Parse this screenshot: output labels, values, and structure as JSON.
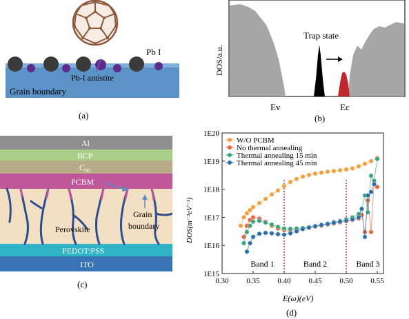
{
  "panel_a": {
    "label_pbi": "Pb I",
    "label_antisite": "Pb-I antistite",
    "label_grain_boundary": "Grain boundary",
    "caption": "(a)",
    "colors": {
      "substrate": "#5b93c7",
      "fullerene": "#8a5a3a",
      "pb_atom": "#3a3a3a",
      "i_atom": "#5b2c8c"
    },
    "icon": "fullerene-molecule"
  },
  "panel_b": {
    "ylabel": "DOS/a.u.",
    "label_trap": "Trap state",
    "label_ev": "Ev",
    "label_ec": "Ec",
    "caption": "(b)",
    "colors": {
      "bands": "#a6a6a6",
      "trap_peak": "#000000",
      "shifted_peak": "#c0282d"
    }
  },
  "panel_c": {
    "layers": [
      "Al",
      "BCP",
      "C60",
      "PCBM",
      "Perovskite",
      "PEDOT:PSS",
      "ITO"
    ],
    "label_al": "Al",
    "label_bcp": "BCP",
    "label_c60_main": "C",
    "label_c60_sub": "60",
    "label_pcbm": "PCBM",
    "label_perovskite": "Perovskite",
    "label_grain_line1": "Grain",
    "label_grain_line2": "boundary",
    "label_pedot": "PEDOT:PSS",
    "label_ito": "ITO",
    "caption": "(c)",
    "colors": {
      "al": "#8e8e8e",
      "bcp": "#a8cf87",
      "c60": "#b9ab88",
      "pcbm": "#c0579a",
      "perovskite": "#f3dfc3",
      "pedot": "#2fb3c5",
      "ito": "#3a74b6",
      "grain": "#2d4e8c"
    }
  },
  "panel_d": {
    "caption": "(d)",
    "xlabel": "E(ω)(eV)",
    "ylabel": "DOS(m⁻³eV⁻¹)",
    "band_labels": [
      "Band 1",
      "Band 2",
      "Band 3"
    ],
    "xticks": [
      "0.30",
      "0.35",
      "0.40",
      "0.45",
      "0.50",
      "0.55"
    ],
    "yticks": [
      "1E15",
      "1E16",
      "1E17",
      "1E18",
      "1E19",
      "1E20"
    ],
    "legend": [
      "W/O PCBM",
      "No thermal annealing",
      "Thermal annealing 15 min",
      "Thermal annealing 45 min"
    ]
  },
  "chart_data": {
    "type": "scatter",
    "xlim": [
      0.3,
      0.56
    ],
    "ylim_log10": [
      15,
      20
    ],
    "log_y": true,
    "grid": false,
    "legend_position": "top-left",
    "vlines": [
      0.4,
      0.5
    ],
    "series": [
      {
        "name": "W/O PCBM",
        "color": "#f2a03d",
        "x": [
          0.33,
          0.335,
          0.34,
          0.345,
          0.35,
          0.36,
          0.37,
          0.38,
          0.39,
          0.4,
          0.41,
          0.42,
          0.43,
          0.44,
          0.45,
          0.46,
          0.47,
          0.48,
          0.49,
          0.5,
          0.51,
          0.52,
          0.53,
          0.54,
          0.55
        ],
        "y": [
          5e+16,
          1e+17,
          1.4e+17,
          1.8e+17,
          2.3e+17,
          3.2e+17,
          4.5e+17,
          6.5e+17,
          9e+17,
          1.3e+18,
          1.8e+18,
          2.3e+18,
          2.8e+18,
          3.2e+18,
          3.6e+18,
          3.9e+18,
          4.2e+18,
          4.4e+18,
          4.7e+18,
          5e+18,
          5.5e+18,
          6.5e+18,
          8e+18,
          1e+19,
          1.3e+19
        ]
      },
      {
        "name": "No thermal annealing",
        "color": "#e8643c",
        "x": [
          0.335,
          0.34,
          0.345,
          0.35,
          0.36,
          0.37,
          0.38,
          0.39,
          0.4,
          0.41,
          0.42,
          0.43,
          0.44,
          0.45,
          0.46,
          0.47,
          0.48,
          0.49,
          0.5,
          0.51,
          0.52,
          0.525,
          0.53,
          0.535,
          0.54,
          0.545,
          0.55
        ],
        "y": [
          2e+16,
          5e+16,
          8e+16,
          1e+17,
          9e+16,
          7e+16,
          5e+16,
          4e+16,
          3.5e+16,
          3.4e+16,
          3.6e+16,
          3.9e+16,
          4.2e+16,
          4.6e+16,
          5e+16,
          5.5e+16,
          6e+16,
          6.6e+16,
          7.2e+16,
          8e+16,
          9e+16,
          1.2e+17,
          3e+16,
          4e+17,
          3e+16,
          2e+18,
          1.2e+18
        ]
      },
      {
        "name": "Thermal annealing 15 min",
        "color": "#3aa37a",
        "x": [
          0.335,
          0.34,
          0.345,
          0.35,
          0.36,
          0.37,
          0.38,
          0.39,
          0.4,
          0.41,
          0.42,
          0.43,
          0.44,
          0.45,
          0.46,
          0.47,
          0.48,
          0.49,
          0.5,
          0.51,
          0.52,
          0.525,
          0.53,
          0.535,
          0.54,
          0.545,
          0.55
        ],
        "y": [
          1.2e+16,
          3e+16,
          5e+16,
          7e+16,
          7.5e+16,
          6.5e+16,
          5.5e+16,
          4.6e+16,
          4e+16,
          3.9e+16,
          4e+16,
          4.2e+16,
          4.5e+16,
          5e+16,
          5.5e+16,
          6e+16,
          6.8e+16,
          7.5e+16,
          8.5e+16,
          1e+17,
          1.3e+17,
          2e+17,
          6e+17,
          1.5e+17,
          3e+18,
          2e+18,
          1.2e+19
        ]
      },
      {
        "name": "Thermal annealing 45 min",
        "color": "#2b6ea8",
        "x": [
          0.34,
          0.345,
          0.35,
          0.36,
          0.37,
          0.38,
          0.39,
          0.4,
          0.41,
          0.42,
          0.43,
          0.44,
          0.45,
          0.46,
          0.47,
          0.48,
          0.49,
          0.5,
          0.51,
          0.52,
          0.525,
          0.53,
          0.535,
          0.54,
          0.545
        ],
        "y": [
          6000000000000000.0,
          1.2e+16,
          2e+16,
          2.6e+16,
          2.8e+16,
          2.7e+16,
          2.5e+16,
          2.4e+16,
          2.7e+16,
          3.2e+16,
          3.8e+16,
          4.3e+16,
          4.8e+16,
          5.3e+16,
          5.8e+16,
          6.4e+16,
          7e+16,
          7.6e+16,
          8.5e+16,
          1e+17,
          2e+17,
          2e+16,
          6e+17,
          8e+17,
          1.5e+18
        ]
      }
    ]
  }
}
